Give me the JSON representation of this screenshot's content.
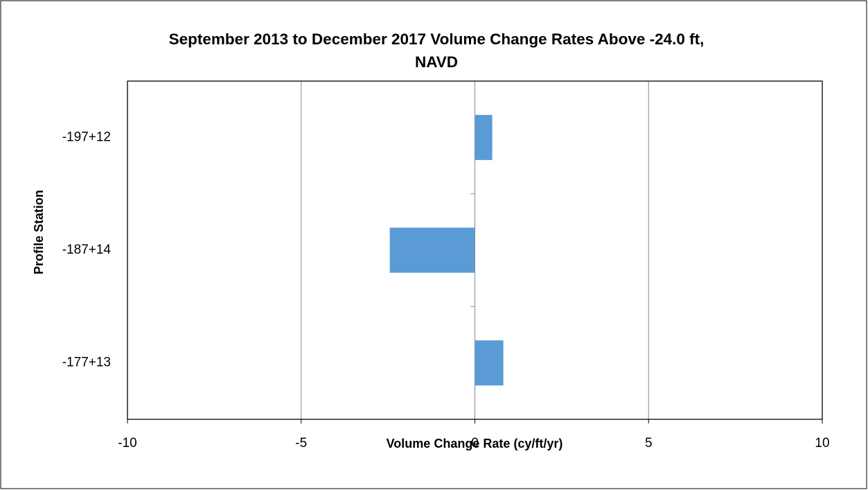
{
  "chart_data": {
    "type": "barh",
    "title": "September 2013 to December 2017 Volume Change Rates Above -24.0 ft, NAVD",
    "xlabel": "Volume Change Rate (cy/ft/yr)",
    "ylabel": "Profile Station",
    "categories": [
      "-197+12",
      "-187+14",
      "-177+13"
    ],
    "values": [
      0.5,
      -2.45,
      0.82
    ],
    "color": "#5b9bd5",
    "xlim": [
      -10,
      10
    ],
    "xticks": [
      -10,
      -5,
      0,
      5,
      10
    ],
    "grid": true
  }
}
